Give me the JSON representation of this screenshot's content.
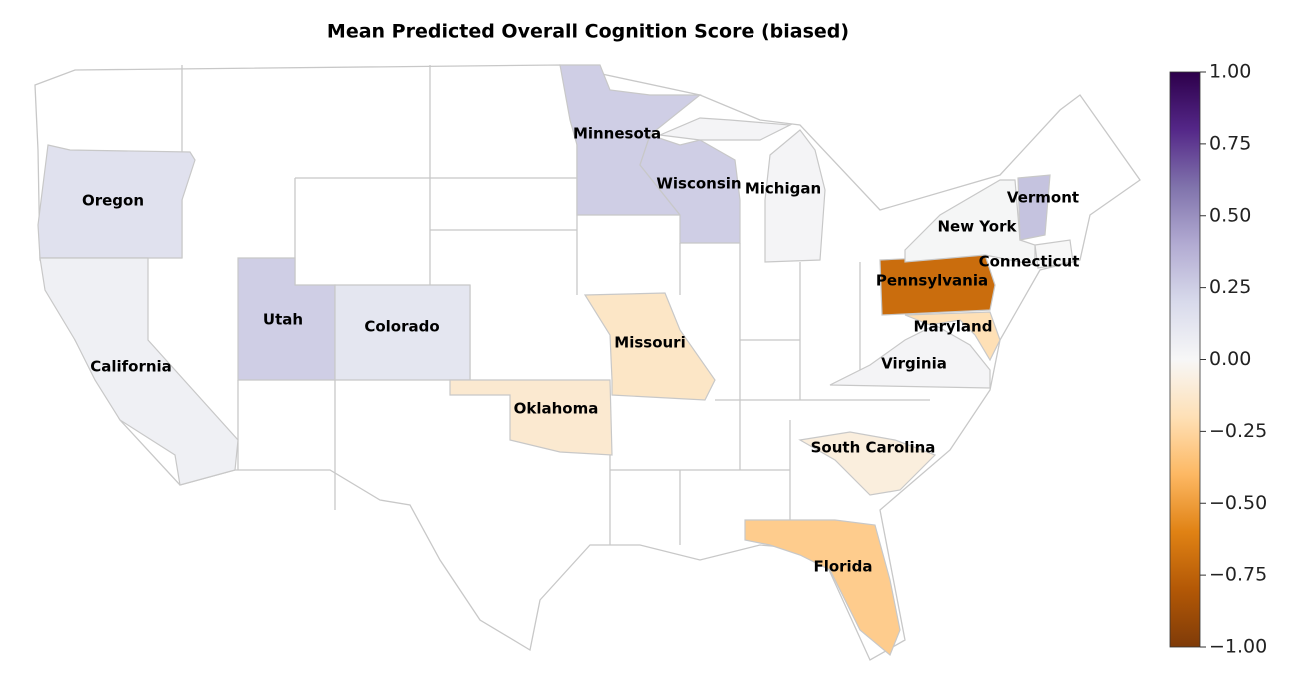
{
  "chart_data": {
    "type": "choropleth",
    "title": "Mean Predicted Overall Cognition Score (biased)",
    "colormap": "PuOr",
    "states": [
      {
        "name": "Oregon",
        "value": 0.15
      },
      {
        "name": "California",
        "value": 0.05
      },
      {
        "name": "Utah",
        "value": 0.25
      },
      {
        "name": "Colorado",
        "value": 0.12
      },
      {
        "name": "Minnesota",
        "value": 0.25
      },
      {
        "name": "Wisconsin",
        "value": 0.25
      },
      {
        "name": "Michigan",
        "value": 0.02
      },
      {
        "name": "Oklahoma",
        "value": -0.12
      },
      {
        "name": "Missouri",
        "value": -0.15
      },
      {
        "name": "Pennsylvania",
        "value": -0.7
      },
      {
        "name": "Maryland",
        "value": -0.2
      },
      {
        "name": "Virginia",
        "value": 0.02
      },
      {
        "name": "New York",
        "value": 0.01
      },
      {
        "name": "Vermont",
        "value": 0.3
      },
      {
        "name": "Connecticut",
        "value": 0.0
      },
      {
        "name": "South Carolina",
        "value": -0.08
      },
      {
        "name": "Florida",
        "value": -0.3
      }
    ],
    "clim": [
      -1,
      1
    ],
    "cticks": [
      {
        "value": 1,
        "label": "1.00"
      },
      {
        "value": 0.75,
        "label": "0.75"
      },
      {
        "value": 0.5,
        "label": "0.50"
      },
      {
        "value": 0.25,
        "label": "0.25"
      },
      {
        "value": 0,
        "label": "0.00"
      },
      {
        "value": -0.25,
        "label": "−0.25"
      },
      {
        "value": -0.5,
        "label": "−0.50"
      },
      {
        "value": -0.75,
        "label": "−0.75"
      },
      {
        "value": -1,
        "label": "−1.00"
      }
    ]
  }
}
